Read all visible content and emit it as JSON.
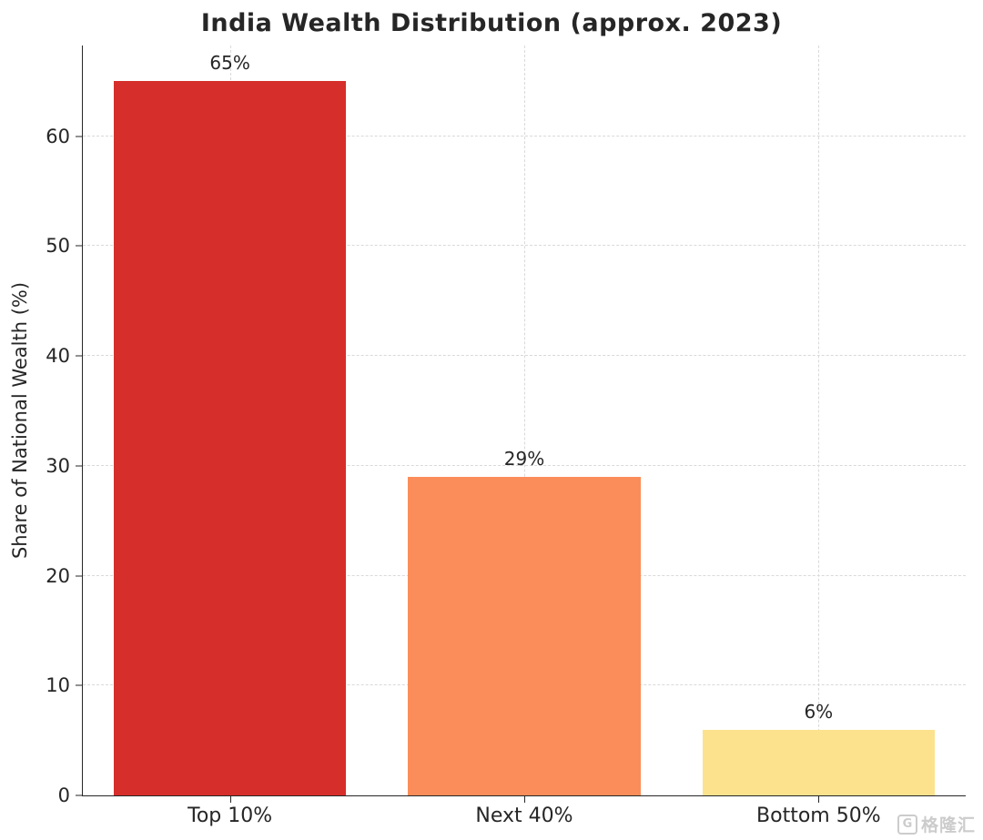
{
  "title": "India Wealth Distribution (approx. 2023)",
  "watermark": {
    "logo_letter": "G",
    "text": "格隆汇"
  },
  "chart_data": {
    "type": "bar",
    "title": "India Wealth Distribution (approx. 2023)",
    "categories": [
      "Top 10%",
      "Next 40%",
      "Bottom 50%"
    ],
    "values": [
      65,
      29,
      6
    ],
    "value_labels": [
      "65%",
      "29%",
      "6%"
    ],
    "xlabel": "",
    "ylabel": "Share of National Wealth (%)",
    "ylim": [
      0,
      68.25
    ],
    "yticks": [
      0,
      10,
      20,
      30,
      40,
      50,
      60
    ],
    "bar_colors": [
      "#d62e2a",
      "#fb8d5a",
      "#fde28d"
    ],
    "grid": "dashed-both-axes",
    "grid_color": "#d9d9d9",
    "legend": "none",
    "bar_width_fraction": 0.79
  }
}
